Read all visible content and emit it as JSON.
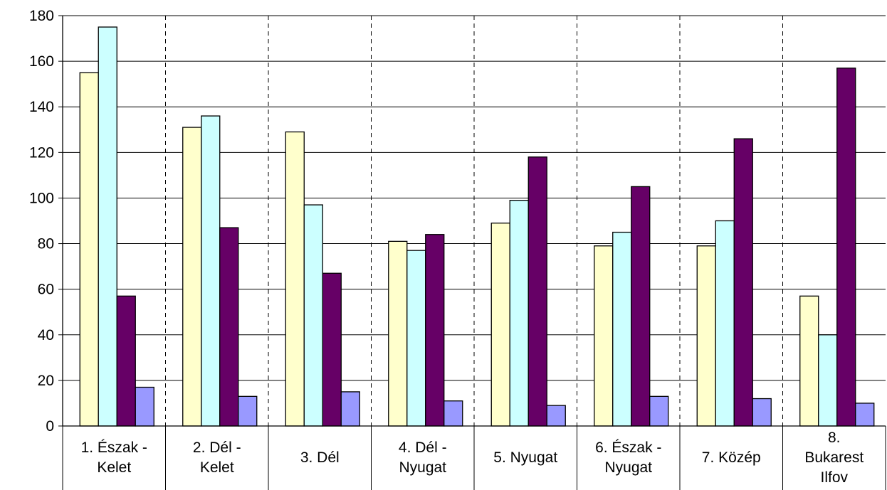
{
  "chart_data": {
    "type": "bar",
    "title": "",
    "xlabel": "",
    "ylabel": "",
    "ylim": [
      0,
      180
    ],
    "yticks": [
      0,
      20,
      40,
      60,
      80,
      100,
      120,
      140,
      160,
      180
    ],
    "grid": {
      "horizontal": "solid",
      "vertical": "dashed"
    },
    "legend": "none",
    "categories": [
      [
        "1. Észak -",
        "Kelet"
      ],
      [
        "2. Dél -",
        "Kelet"
      ],
      [
        "3. Dél"
      ],
      [
        "4. Dél -",
        "Nyugat"
      ],
      [
        "5. Nyugat"
      ],
      [
        "6. Észak -",
        "Nyugat"
      ],
      [
        "7. Közép"
      ],
      [
        "8.",
        "Bukarest",
        "Ilfov"
      ]
    ],
    "series": [
      {
        "color": "#ffffcc",
        "values": [
          155,
          131,
          129,
          81,
          89,
          79,
          79,
          57
        ]
      },
      {
        "color": "#ccffff",
        "values": [
          175,
          136,
          97,
          77,
          99,
          85,
          90,
          40
        ]
      },
      {
        "color": "#660066",
        "values": [
          57,
          87,
          67,
          84,
          118,
          105,
          126,
          157
        ]
      },
      {
        "color": "#9999ff",
        "values": [
          17,
          13,
          15,
          11,
          9,
          13,
          12,
          10
        ]
      }
    ]
  }
}
